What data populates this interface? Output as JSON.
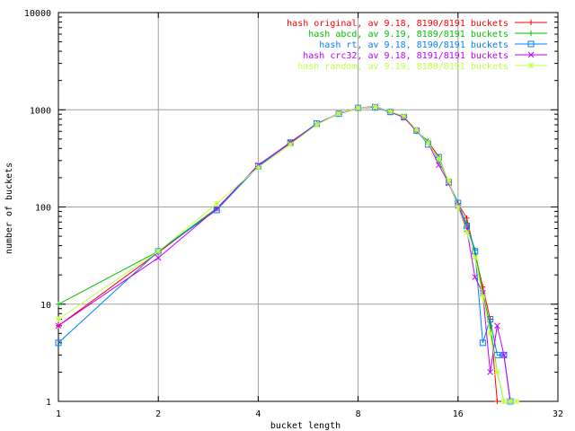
{
  "chart_data": {
    "type": "line",
    "xlabel": "bucket length",
    "ylabel": "number of buckets",
    "x_scale": "log2",
    "y_scale": "log10",
    "xlim": [
      1,
      32
    ],
    "ylim": [
      1,
      10000
    ],
    "x_ticks": [
      1,
      2,
      4,
      8,
      16,
      32
    ],
    "x_tick_labels": [
      "1",
      "2",
      "4",
      "8",
      "16",
      "32"
    ],
    "y_ticks": [
      1,
      10,
      100,
      1000,
      10000
    ],
    "y_tick_labels": [
      "1",
      "10",
      "100",
      "1000",
      "10000"
    ],
    "grid": true,
    "legend_position": "top-right",
    "series": [
      {
        "name": "hash original, av 9.18, 8190/8191 buckets",
        "color": "#ff0000",
        "marker": "plus",
        "points": [
          [
            1,
            6
          ],
          [
            2,
            34
          ],
          [
            3,
            96
          ],
          [
            4,
            262
          ],
          [
            5,
            455
          ],
          [
            6,
            712
          ],
          [
            7,
            908
          ],
          [
            8,
            1039
          ],
          [
            9,
            1068
          ],
          [
            10,
            953
          ],
          [
            11,
            833
          ],
          [
            12,
            600
          ],
          [
            13,
            469
          ],
          [
            14,
            329
          ],
          [
            15,
            178
          ],
          [
            16,
            108
          ],
          [
            17,
            77
          ],
          [
            18,
            33
          ],
          [
            19,
            15
          ],
          [
            20,
            7
          ],
          [
            21,
            1
          ]
        ]
      },
      {
        "name": "hash abcd, av 9.19, 8189/8191 buckets",
        "color": "#00c000",
        "marker": "plus",
        "points": [
          [
            1,
            10
          ],
          [
            2,
            35
          ],
          [
            3,
            97
          ],
          [
            4,
            258
          ],
          [
            5,
            466
          ],
          [
            6,
            715
          ],
          [
            7,
            910
          ],
          [
            8,
            1041
          ],
          [
            9,
            1085
          ],
          [
            10,
            936
          ],
          [
            11,
            846
          ],
          [
            12,
            601
          ],
          [
            13,
            476
          ],
          [
            14,
            300
          ],
          [
            15,
            182
          ],
          [
            16,
            104
          ],
          [
            17,
            68
          ],
          [
            18,
            36
          ],
          [
            19,
            13
          ],
          [
            20,
            6
          ],
          [
            21,
            2
          ],
          [
            22,
            1
          ]
        ]
      },
      {
        "name": "hash rt, av 9.18, 8190/8191 buckets",
        "color": "#0080ff",
        "marker": "square",
        "points": [
          [
            1,
            4
          ],
          [
            2,
            35
          ],
          [
            3,
            93
          ],
          [
            4,
            262
          ],
          [
            5,
            460
          ],
          [
            6,
            721
          ],
          [
            7,
            911
          ],
          [
            8,
            1046
          ],
          [
            9,
            1060
          ],
          [
            10,
            950
          ],
          [
            11,
            840
          ],
          [
            12,
            612
          ],
          [
            13,
            440
          ],
          [
            14,
            325
          ],
          [
            15,
            180
          ],
          [
            16,
            110
          ],
          [
            17,
            64
          ],
          [
            18,
            35
          ],
          [
            19,
            4
          ],
          [
            20,
            7
          ],
          [
            21,
            3
          ],
          [
            22,
            3
          ],
          [
            23,
            1
          ]
        ]
      },
      {
        "name": "hash crc32, av 9.18, 8191/8191 buckets",
        "color": "#c000ff",
        "marker": "x",
        "points": [
          [
            1,
            6
          ],
          [
            2,
            30
          ],
          [
            3,
            96
          ],
          [
            4,
            270
          ],
          [
            5,
            462
          ],
          [
            6,
            705
          ],
          [
            7,
            926
          ],
          [
            8,
            1040
          ],
          [
            9,
            1090
          ],
          [
            10,
            953
          ],
          [
            11,
            835
          ],
          [
            12,
            610
          ],
          [
            13,
            460
          ],
          [
            14,
            270
          ],
          [
            15,
            176
          ],
          [
            16,
            103
          ],
          [
            17,
            59
          ],
          [
            18,
            19
          ],
          [
            19,
            13
          ],
          [
            20,
            2
          ],
          [
            21,
            6
          ],
          [
            22,
            3
          ],
          [
            23,
            1
          ]
        ]
      },
      {
        "name": "hash random, av 9.19, 8188/8191 buckets",
        "color": "#c0ff40",
        "marker": "star",
        "points": [
          [
            1,
            7
          ],
          [
            2,
            35
          ],
          [
            3,
            108
          ],
          [
            4,
            255
          ],
          [
            5,
            440
          ],
          [
            6,
            700
          ],
          [
            7,
            920
          ],
          [
            8,
            1040
          ],
          [
            9,
            1080
          ],
          [
            10,
            960
          ],
          [
            11,
            860
          ],
          [
            12,
            620
          ],
          [
            13,
            455
          ],
          [
            14,
            315
          ],
          [
            15,
            185
          ],
          [
            16,
            100
          ],
          [
            17,
            55
          ],
          [
            18,
            30
          ],
          [
            19,
            12
          ],
          [
            20,
            5
          ],
          [
            21,
            2
          ],
          [
            22,
            1
          ],
          [
            23,
            1
          ],
          [
            24,
            1
          ]
        ]
      }
    ]
  }
}
